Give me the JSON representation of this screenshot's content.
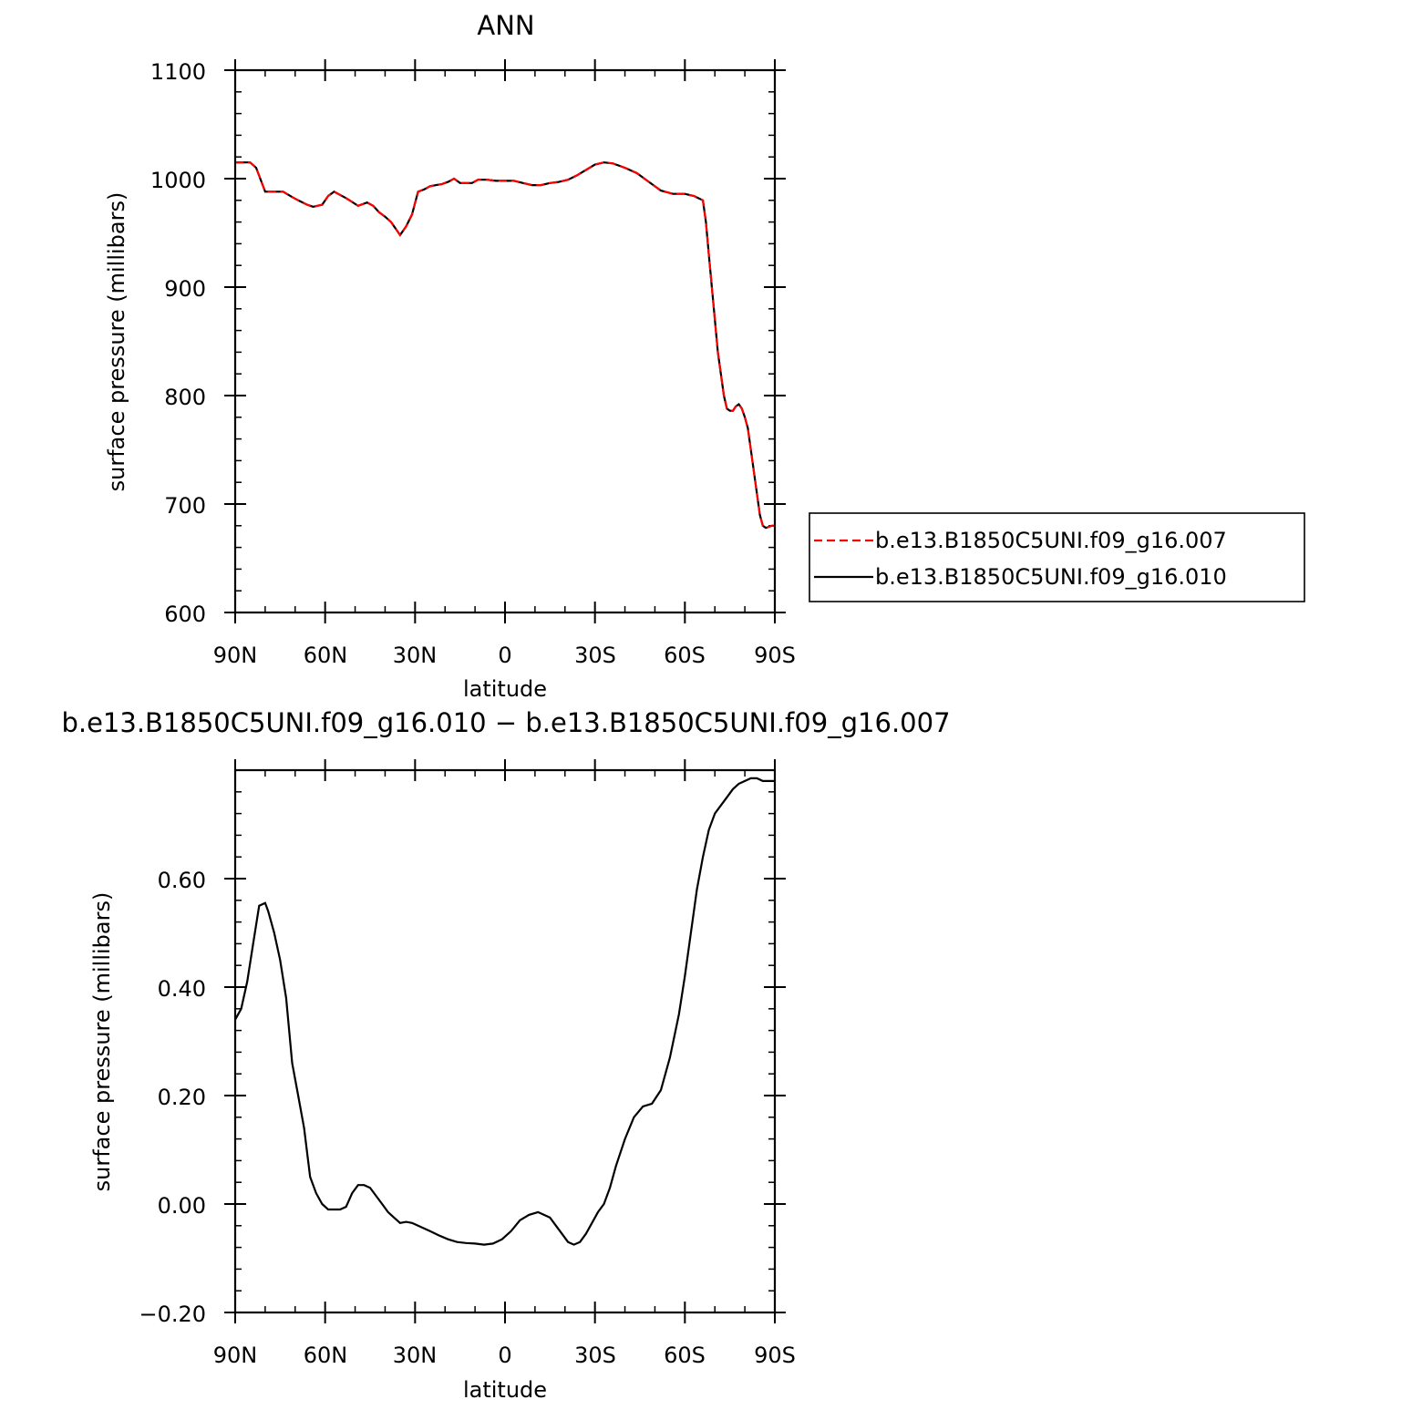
{
  "chart_data": [
    {
      "type": "line",
      "title": "ANN",
      "xlabel": "latitude",
      "ylabel": "surface pressure (millibars)",
      "x_tick_labels": [
        "90N",
        "60N",
        "30N",
        "0",
        "30S",
        "60S",
        "90S"
      ],
      "x_tick_values": [
        -90,
        -60,
        -30,
        0,
        30,
        60,
        90
      ],
      "xlim": [
        -90,
        90
      ],
      "y_ticks": [
        600,
        700,
        800,
        900,
        1000,
        1100
      ],
      "y_tick_labels": [
        "600",
        "700",
        "800",
        "900",
        "1000",
        "1100"
      ],
      "ylim": [
        600,
        1100
      ],
      "legend_position": "right",
      "series": [
        {
          "name": "b.e13.B1850C5UNI.f09_g16.007",
          "color": "#ff0000",
          "dash": "dashed",
          "x": [
            -90,
            -85,
            -83,
            -80,
            -74,
            -71,
            -69,
            -66,
            -64,
            -61,
            -59,
            -57,
            -53,
            -49,
            -46,
            -44,
            -42,
            -40,
            -38,
            -35,
            -33,
            -31,
            -29,
            -27,
            -25,
            -23,
            -21,
            -19,
            -17,
            -15,
            -13,
            -11,
            -9,
            -6,
            -3,
            0,
            3,
            6,
            9,
            12,
            15,
            18,
            21,
            24,
            27,
            30,
            33,
            36,
            40,
            44,
            48,
            52,
            56,
            60,
            63,
            66,
            67,
            68,
            69,
            70,
            71,
            72,
            73,
            74,
            75,
            76,
            77,
            78,
            79,
            80,
            81,
            82,
            83,
            84,
            85,
            86,
            87,
            88,
            89,
            90
          ],
          "y": [
            1015,
            1015,
            1010,
            988,
            988,
            983,
            980,
            976,
            974,
            976,
            984,
            988,
            982,
            975,
            978,
            975,
            969,
            965,
            960,
            948,
            956,
            967,
            988,
            990,
            993,
            994,
            995,
            997,
            1000,
            996,
            996,
            996,
            999,
            999,
            998,
            998,
            998,
            996,
            994,
            994,
            996,
            997,
            999,
            1003,
            1008,
            1013,
            1015,
            1014,
            1010,
            1005,
            997,
            989,
            986,
            986,
            984,
            980,
            960,
            930,
            900,
            870,
            840,
            820,
            800,
            788,
            786,
            786,
            790,
            792,
            788,
            780,
            770,
            750,
            730,
            710,
            690,
            680,
            678,
            679,
            680,
            680
          ]
        },
        {
          "name": "b.e13.B1850C5UNI.f09_g16.010",
          "color": "#000000",
          "dash": "solid",
          "x": [
            -90,
            -85,
            -83,
            -80,
            -74,
            -71,
            -69,
            -66,
            -64,
            -61,
            -59,
            -57,
            -53,
            -49,
            -46,
            -44,
            -42,
            -40,
            -38,
            -35,
            -33,
            -31,
            -29,
            -27,
            -25,
            -23,
            -21,
            -19,
            -17,
            -15,
            -13,
            -11,
            -9,
            -6,
            -3,
            0,
            3,
            6,
            9,
            12,
            15,
            18,
            21,
            24,
            27,
            30,
            33,
            36,
            40,
            44,
            48,
            52,
            56,
            60,
            63,
            66,
            67,
            68,
            69,
            70,
            71,
            72,
            73,
            74,
            75,
            76,
            77,
            78,
            79,
            80,
            81,
            82,
            83,
            84,
            85,
            86,
            87,
            88,
            89,
            90
          ],
          "y": [
            1015,
            1015,
            1010,
            988,
            988,
            983,
            980,
            976,
            974,
            976,
            984,
            988,
            982,
            975,
            978,
            975,
            969,
            965,
            960,
            948,
            956,
            967,
            988,
            990,
            993,
            994,
            995,
            997,
            1000,
            996,
            996,
            996,
            999,
            999,
            998,
            998,
            998,
            996,
            994,
            994,
            996,
            997,
            999,
            1003,
            1008,
            1013,
            1015,
            1014,
            1010,
            1005,
            997,
            989,
            986,
            986,
            984,
            980,
            960,
            930,
            900,
            870,
            840,
            820,
            800,
            788,
            786,
            786,
            790,
            792,
            788,
            780,
            770,
            750,
            730,
            710,
            690,
            680,
            678,
            679,
            680,
            680
          ]
        }
      ]
    },
    {
      "type": "line",
      "title": "b.e13.B1850C5UNI.f09_g16.010 − b.e13.B1850C5UNI.f09_g16.007",
      "xlabel": "latitude",
      "ylabel": "surface pressure (millibars)",
      "x_tick_labels": [
        "90N",
        "60N",
        "30N",
        "0",
        "30S",
        "60S",
        "90S"
      ],
      "x_tick_values": [
        -90,
        -60,
        -30,
        0,
        30,
        60,
        90
      ],
      "xlim": [
        -90,
        90
      ],
      "y_ticks": [
        -0.2,
        0.0,
        0.2,
        0.4,
        0.6
      ],
      "y_tick_labels": [
        "−0.20",
        "0.00",
        "0.20",
        "0.40",
        "0.60"
      ],
      "ylim": [
        -0.2,
        0.8
      ],
      "series": [
        {
          "color": "#000000",
          "dash": "solid",
          "x": [
            -90,
            -88,
            -86,
            -84,
            -82,
            -80,
            -79,
            -78,
            -77,
            -75,
            -73,
            -71,
            -69,
            -67,
            -65,
            -63,
            -61,
            -59,
            -57,
            -55,
            -53,
            -51,
            -49,
            -47,
            -45,
            -43,
            -41,
            -39,
            -37,
            -35,
            -33,
            -31,
            -29,
            -27,
            -25,
            -22,
            -19,
            -16,
            -13,
            -10,
            -7,
            -4,
            -1,
            2,
            5,
            8,
            11,
            13,
            15,
            17,
            19,
            21,
            23,
            25,
            27,
            29,
            31,
            33,
            35,
            37,
            40,
            43,
            46,
            49,
            52,
            55,
            58,
            60,
            62,
            64,
            66,
            68,
            70,
            72,
            74,
            76,
            78,
            80,
            82,
            84,
            86,
            88,
            90
          ],
          "y": [
            0.34,
            0.36,
            0.41,
            0.48,
            0.55,
            0.555,
            0.54,
            0.52,
            0.5,
            0.45,
            0.38,
            0.26,
            0.2,
            0.14,
            0.05,
            0.02,
            0.0,
            -0.01,
            -0.01,
            -0.01,
            -0.005,
            0.02,
            0.035,
            0.035,
            0.03,
            0.015,
            0.0,
            -0.015,
            -0.025,
            -0.035,
            -0.033,
            -0.035,
            -0.04,
            -0.045,
            -0.05,
            -0.058,
            -0.065,
            -0.07,
            -0.072,
            -0.073,
            -0.075,
            -0.073,
            -0.065,
            -0.05,
            -0.03,
            -0.02,
            -0.015,
            -0.02,
            -0.025,
            -0.04,
            -0.055,
            -0.07,
            -0.075,
            -0.07,
            -0.055,
            -0.035,
            -0.015,
            0.0,
            0.03,
            0.07,
            0.12,
            0.16,
            0.18,
            0.185,
            0.21,
            0.27,
            0.35,
            0.42,
            0.5,
            0.58,
            0.64,
            0.69,
            0.72,
            0.735,
            0.75,
            0.765,
            0.775,
            0.78,
            0.785,
            0.785,
            0.78,
            0.78,
            0.78
          ]
        }
      ]
    }
  ]
}
